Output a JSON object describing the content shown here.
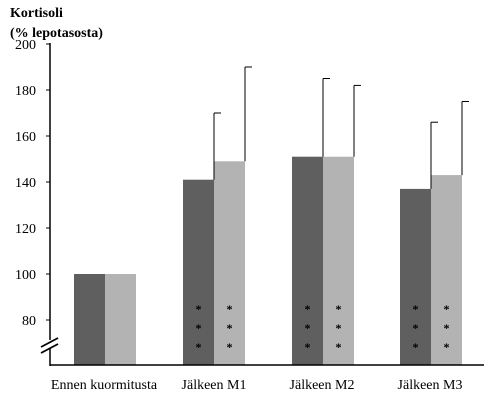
{
  "chart_data": {
    "type": "bar",
    "ylabel_lines": [
      "Kortisoli",
      "(% lepotasosta)"
    ],
    "xlabel": "",
    "categories": [
      "Ennen kuormitusta",
      "Jälkeen M1",
      "Jälkeen M2",
      "Jälkeen M3"
    ],
    "series": [
      {
        "values": [
          100,
          141,
          151,
          137
        ],
        "error": [
          0,
          29,
          34,
          29
        ],
        "color": "#5f5f5f"
      },
      {
        "values": [
          100,
          149,
          151,
          143
        ],
        "error": [
          0,
          41,
          31,
          32
        ],
        "color": "#b3b3b3"
      }
    ],
    "significance": [
      {
        "category": 1,
        "series": 0,
        "mark": "*"
      },
      {
        "category": 1,
        "series": 1,
        "mark": "*"
      },
      {
        "category": 2,
        "series": 0,
        "mark": "*"
      },
      {
        "category": 2,
        "series": 1,
        "mark": "*"
      },
      {
        "category": 3,
        "series": 0,
        "mark": "*"
      },
      {
        "category": 3,
        "series": 1,
        "mark": "*"
      }
    ],
    "significance_repeat": 3,
    "yticks": [
      80,
      100,
      120,
      140,
      160,
      180,
      200
    ],
    "ylim": [
      80,
      200
    ],
    "axis_break": true,
    "grid": false,
    "legend": "none"
  }
}
